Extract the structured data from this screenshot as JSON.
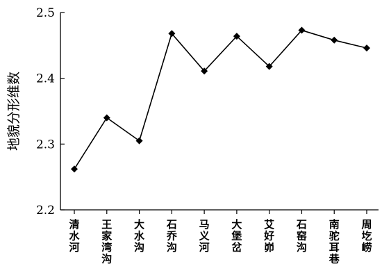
{
  "chart_data": {
    "type": "line",
    "title": "",
    "xlabel": "",
    "ylabel": "地貌分形维数",
    "categories": [
      "清水河",
      "王家湾沟",
      "大水沟",
      "石乔沟",
      "马义河",
      "大堡岔",
      "艾好峁",
      "石窑沟",
      "南驼耳巷",
      "周圪崂"
    ],
    "series": [
      {
        "values": [
          2.262,
          2.34,
          2.305,
          2.468,
          2.411,
          2.464,
          2.418,
          2.473,
          2.458,
          2.446
        ]
      }
    ],
    "ylim": [
      2.2,
      2.5
    ],
    "yticks": [
      "2.2",
      "2.3",
      "2.4",
      "2.5"
    ],
    "marker": "diamond",
    "line_color": "#000000",
    "grid": false,
    "legend": "none"
  }
}
